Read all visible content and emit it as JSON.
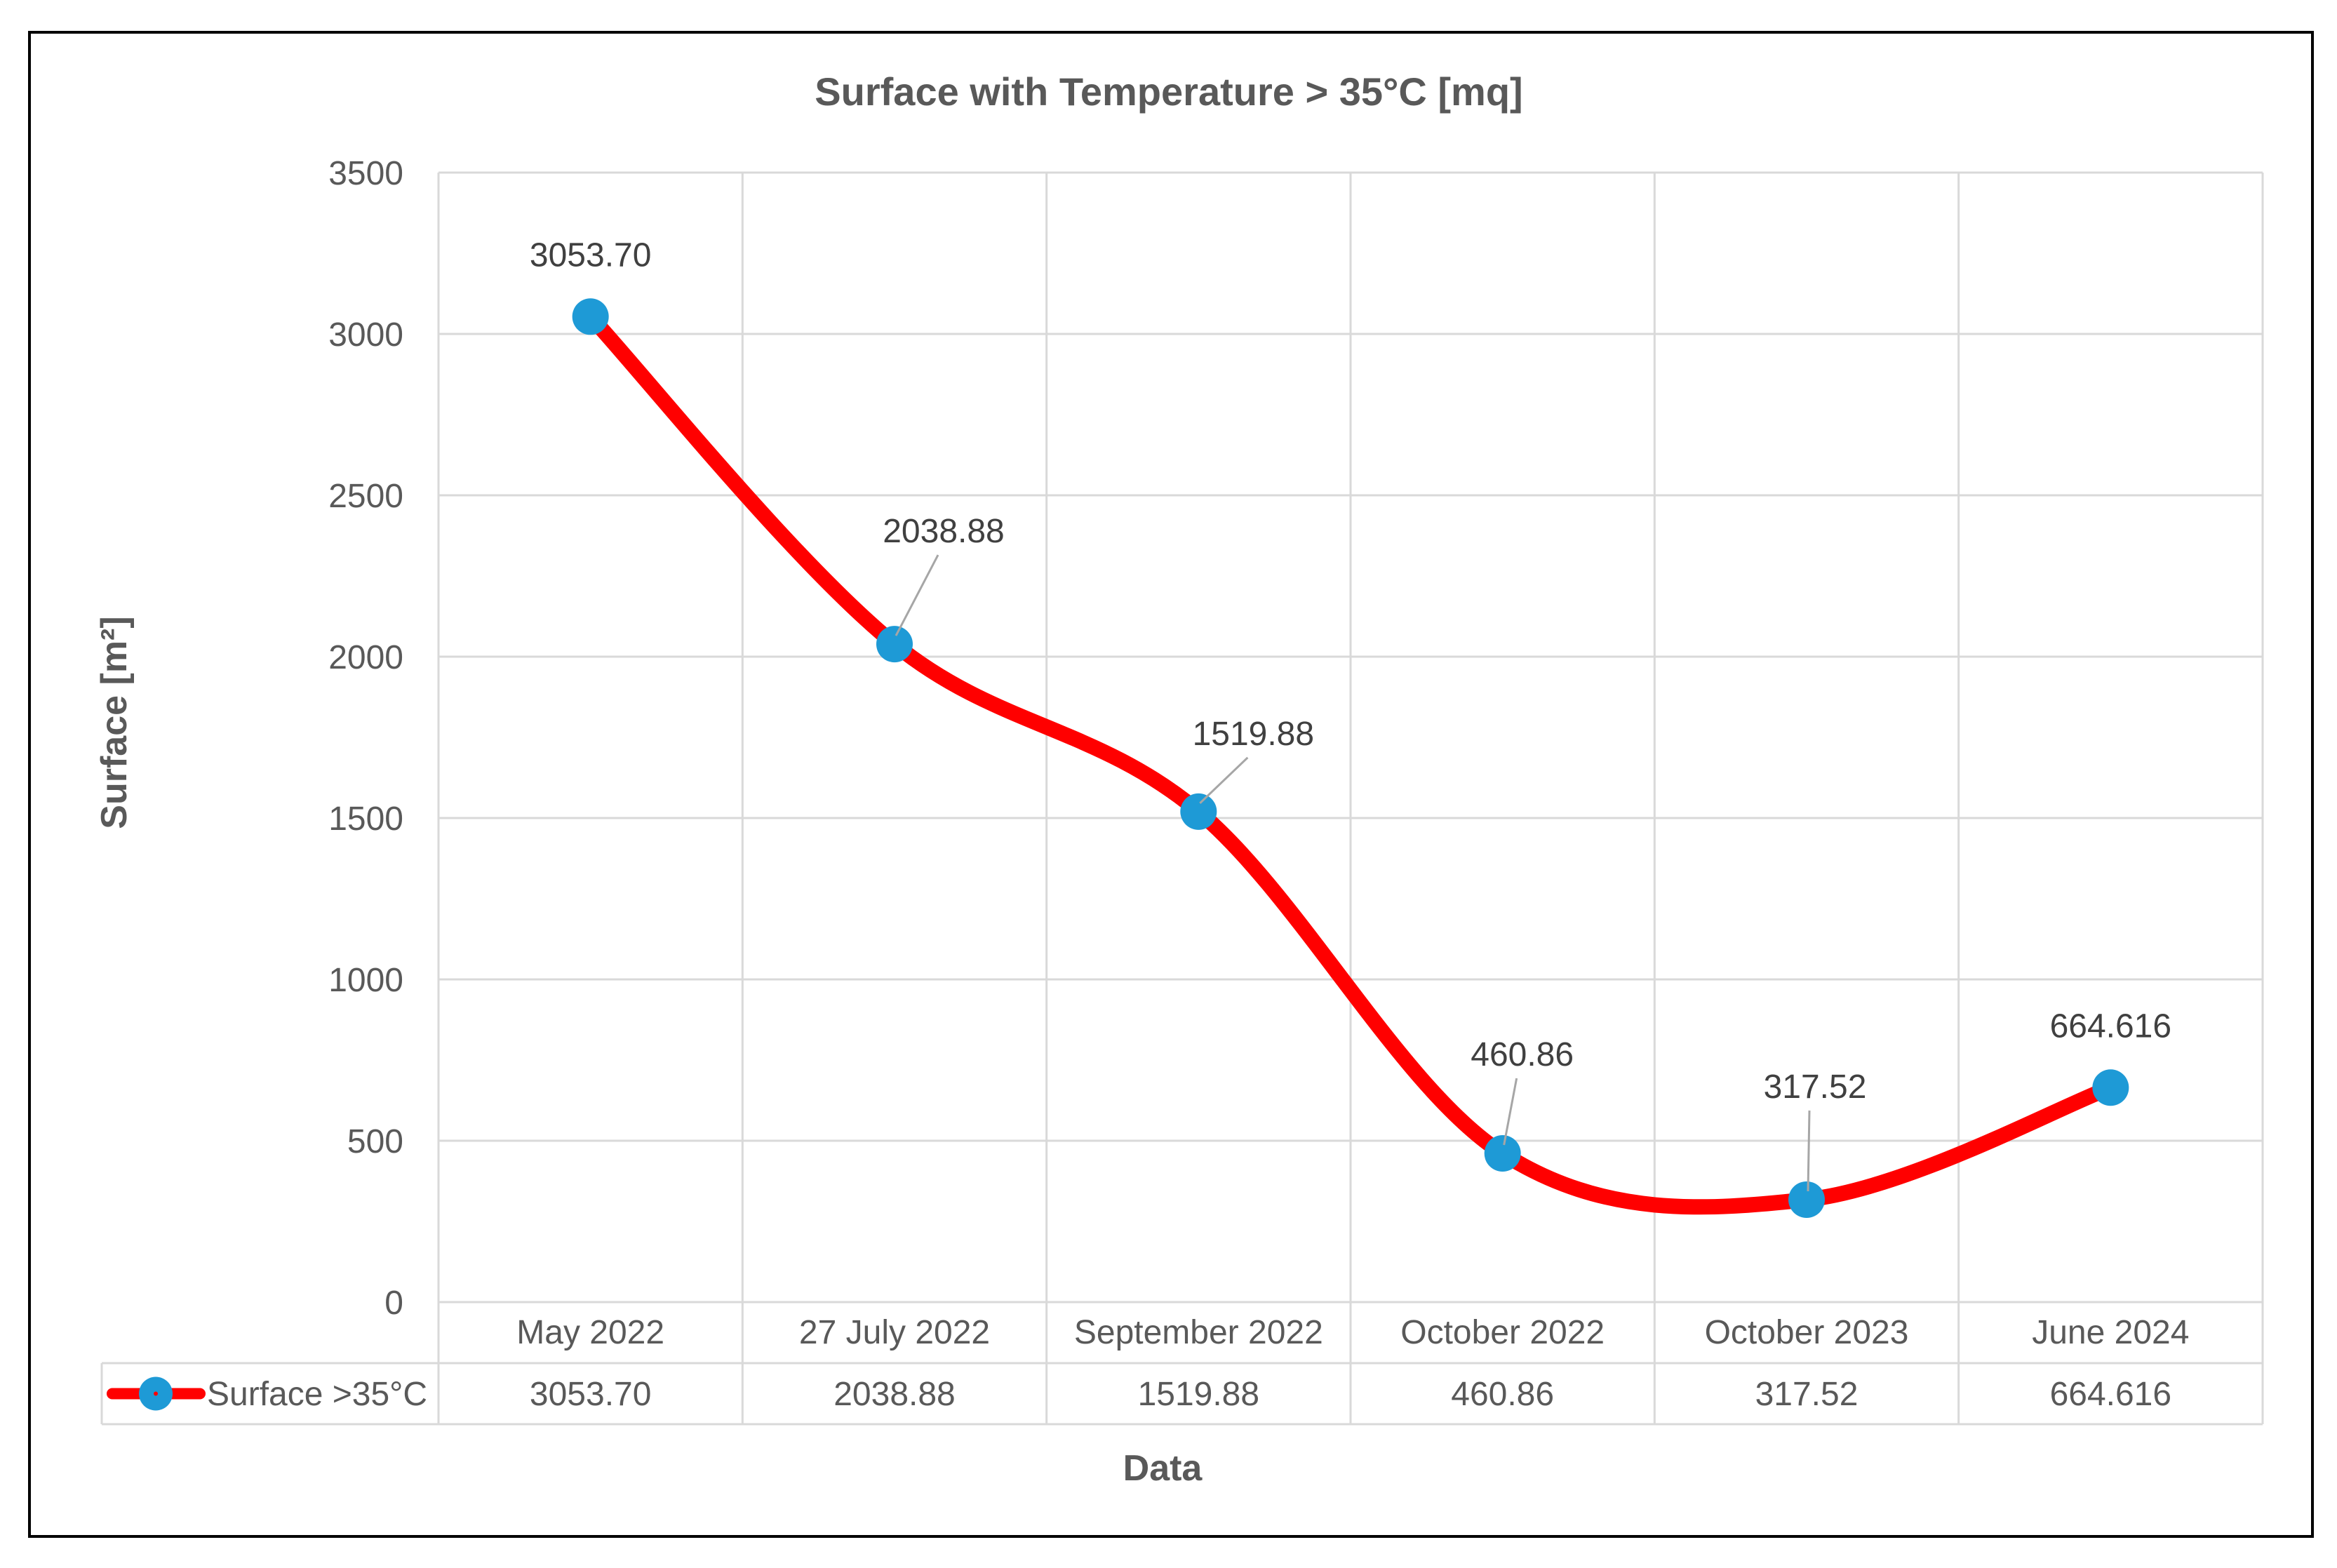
{
  "chart_data": {
    "type": "line",
    "title": "Surface with Temperature > 35°C [mq]",
    "xlabel": "Data",
    "ylabel": "Surface  [m²]",
    "categories": [
      "May 2022",
      "27 July 2022",
      "September 2022",
      "October 2022",
      "October 2023",
      "June 2024"
    ],
    "series": [
      {
        "name": "Surface >35°C",
        "values": [
          3053.7,
          2038.88,
          1519.88,
          460.86,
          317.52,
          664.616
        ],
        "labels": [
          "3053.70",
          "2038.88",
          "1519.88",
          "460.86",
          "317.52",
          "664.616"
        ],
        "line_color": "#ff0000",
        "marker_color": "#1e9ad6"
      }
    ],
    "ylim": [
      0,
      3500
    ],
    "yticks": [
      "0",
      "500",
      "1000",
      "1500",
      "2000",
      "2500",
      "3000",
      "3500"
    ],
    "grid": true,
    "smooth": true,
    "data_table": true
  }
}
